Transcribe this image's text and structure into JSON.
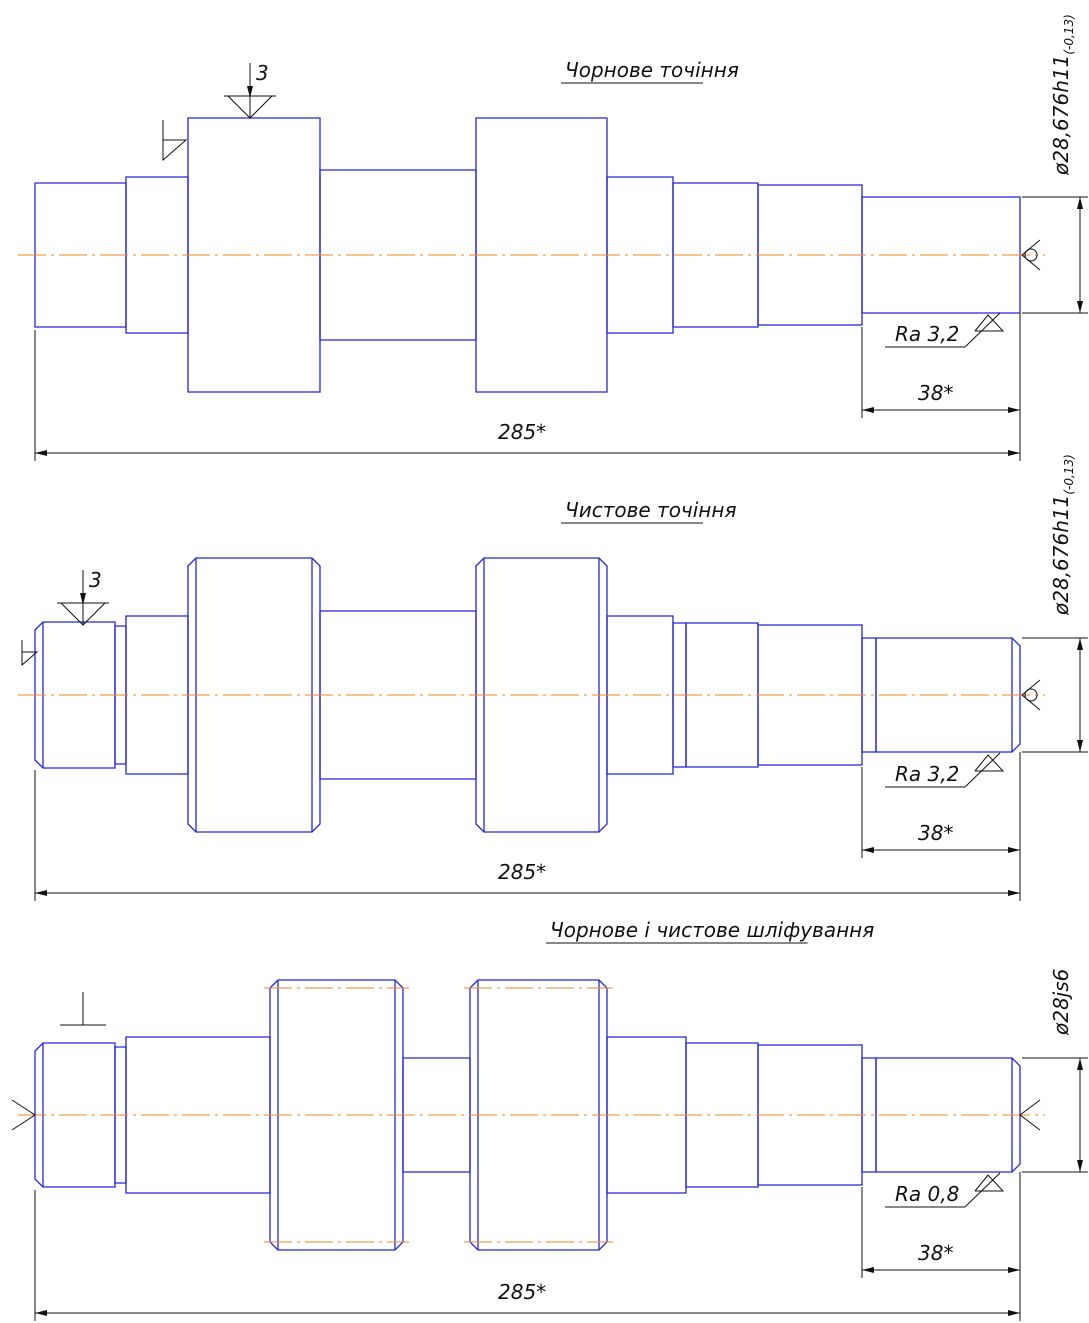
{
  "views": [
    {
      "title": "Чорнове точіння",
      "depth_mark": "3",
      "diameter": {
        "main": "ø28,676h11",
        "tolerance": "(-0,13)"
      },
      "roughness": "Ra 3,2",
      "length_short": "38*",
      "length_total": "285*"
    },
    {
      "title": "Чистове точіння",
      "depth_mark": "3",
      "diameter": {
        "main": "ø28,676h11",
        "tolerance": "(-0,13)"
      },
      "roughness": "Ra 3,2",
      "length_short": "38*",
      "length_total": "285*"
    },
    {
      "title": "Чорнове і чистове шліфування",
      "diameter": {
        "main": "ø28js6"
      },
      "roughness": "Ra 0,8",
      "length_short": "38*",
      "length_total": "285*"
    }
  ]
}
